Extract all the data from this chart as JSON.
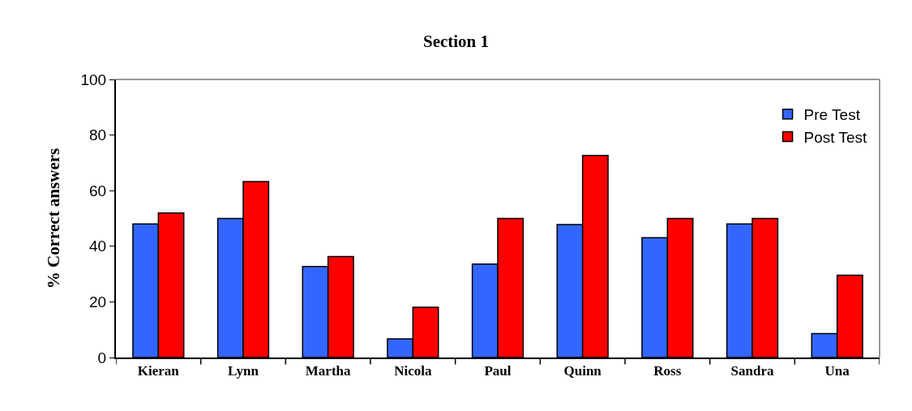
{
  "chart_data": {
    "type": "bar",
    "title": "Section 1",
    "ylabel": "% Correct answers",
    "categories": [
      "Kieran",
      "Lynn",
      "Martha",
      "Nicola",
      "Paul",
      "Quinn",
      "Ross",
      "Sandra",
      "Una"
    ],
    "series": [
      {
        "name": "Pre Test",
        "color": "#3366ff",
        "values": [
          48,
          50,
          32.7,
          6.7,
          33.6,
          47.8,
          43.1,
          48,
          8.6
        ]
      },
      {
        "name": "Post Test",
        "color": "#ff0000",
        "values": [
          52,
          63.3,
          36.3,
          18.1,
          50,
          72.7,
          50,
          50,
          29.6
        ]
      }
    ],
    "ylim": [
      0,
      100
    ],
    "yticks": [
      0,
      20,
      40,
      60,
      80,
      100
    ],
    "legend": "top right"
  }
}
